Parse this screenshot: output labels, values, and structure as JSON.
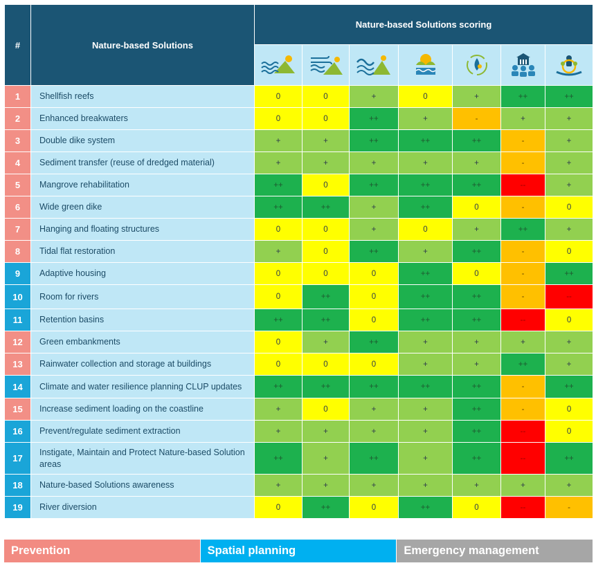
{
  "header": {
    "num_label": "#",
    "solutions_label": "Nature-based Solutions",
    "scoring_label": "Nature-based Solutions scoring",
    "score_icons": [
      "coastal-flooding-icon",
      "storm-wind-icon",
      "sea-level-rise-icon",
      "ecosystem-icon",
      "water-resources-icon",
      "community-icon",
      "biodiversity-icon"
    ]
  },
  "colors": {
    "header_bg": "#1b5574",
    "name_bg": "#bfe7f6",
    "prevention": "#f28f86",
    "spatial_planning": "#1aa5d8",
    "emergency_management": "#a6a6a6",
    "score_0": "#ffff00",
    "score_plus": "#92d050",
    "score_plusplus": "#1db14e",
    "score_minus": "#ffc000",
    "score_minusminus": "#ff0000"
  },
  "rows": [
    {
      "num": "1",
      "name": "Shellfish reefs",
      "category": "prevention",
      "scores": [
        "0",
        "0",
        "+",
        "0",
        "+",
        "++",
        "++"
      ]
    },
    {
      "num": "2",
      "name": "Enhanced breakwaters",
      "category": "prevention",
      "scores": [
        "0",
        "0",
        "++",
        "+",
        "-",
        "+",
        "+"
      ]
    },
    {
      "num": "3",
      "name": "Double dike system",
      "category": "prevention",
      "scores": [
        "+",
        "+",
        "++",
        "++",
        "++",
        "-",
        "+"
      ]
    },
    {
      "num": "4",
      "name": "Sediment transfer (reuse of dredged material)",
      "category": "prevention",
      "scores": [
        "+",
        "+",
        "+",
        "+",
        "+",
        "-",
        "+"
      ]
    },
    {
      "num": "5",
      "name": "Mangrove rehabilitation",
      "category": "prevention",
      "scores": [
        "++",
        "0",
        "++",
        "++",
        "++",
        "--",
        "+"
      ]
    },
    {
      "num": "6",
      "name": "Wide green dike",
      "category": "prevention",
      "scores": [
        "++",
        "++",
        "+",
        "++",
        "0",
        "-",
        "0"
      ]
    },
    {
      "num": "7",
      "name": "Hanging and floating structures",
      "category": "prevention",
      "scores": [
        "0",
        "0",
        "+",
        "0",
        "+",
        "++",
        "+"
      ]
    },
    {
      "num": "8",
      "name": "Tidal flat restoration",
      "category": "prevention",
      "scores": [
        "+",
        "0",
        "++",
        "+",
        "++",
        "-",
        "0"
      ]
    },
    {
      "num": "9",
      "name": "Adaptive housing",
      "category": "spatial",
      "scores": [
        "0",
        "0",
        "0",
        "++",
        "0",
        "-",
        "++"
      ]
    },
    {
      "num": "10",
      "name": "Room for rivers",
      "category": "spatial",
      "scores": [
        "0",
        "++",
        "0",
        "++",
        "++",
        "-",
        "--"
      ]
    },
    {
      "num": "11",
      "name": "Retention basins",
      "category": "spatial",
      "scores": [
        "++",
        "++",
        "0",
        "++",
        "++",
        "--",
        "0"
      ]
    },
    {
      "num": "12",
      "name": "Green embankments",
      "category": "prevention",
      "scores": [
        "0",
        "+",
        "++",
        "+",
        "+",
        "+",
        "+"
      ]
    },
    {
      "num": "13",
      "name": "Rainwater collection and storage at buildings",
      "category": "prevention",
      "scores": [
        "0",
        "0",
        "0",
        "+",
        "+",
        "++",
        "+"
      ]
    },
    {
      "num": "14",
      "name": "Climate and water resilience planning CLUP updates",
      "category": "spatial",
      "scores": [
        "++",
        "++",
        "++",
        "++",
        "++",
        "-",
        "++"
      ]
    },
    {
      "num": "15",
      "name": "Increase sediment loading on the coastline",
      "category": "prevention",
      "scores": [
        "+",
        "0",
        "+",
        "+",
        "++",
        "-",
        "0"
      ]
    },
    {
      "num": "16",
      "name": "Prevent/regulate sediment extraction",
      "category": "spatial",
      "scores": [
        "+",
        "+",
        "+",
        "+",
        "++",
        "--",
        "0"
      ]
    },
    {
      "num": "17",
      "name": "Instigate, Maintain and Protect Nature-based Solution areas",
      "category": "spatial",
      "scores": [
        "++",
        "+",
        "++",
        "+",
        "++",
        "--",
        "++"
      ]
    },
    {
      "num": "18",
      "name": "Nature-based Solutions awareness",
      "category": "spatial",
      "scores": [
        "+",
        "+",
        "+",
        "+",
        "+",
        "+",
        "+"
      ]
    },
    {
      "num": "19",
      "name": "River diversion",
      "category": "spatial",
      "scores": [
        "0",
        "++",
        "0",
        "++",
        "0",
        "--",
        "-"
      ]
    }
  ],
  "legend": {
    "prevention": "Prevention",
    "spatial_planning": "Spatial planning",
    "emergency_management": "Emergency management"
  }
}
